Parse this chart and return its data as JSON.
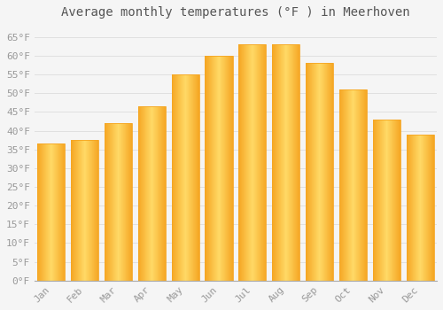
{
  "title": "Average monthly temperatures (°F ) in Meerhoven",
  "months": [
    "Jan",
    "Feb",
    "Mar",
    "Apr",
    "May",
    "Jun",
    "Jul",
    "Aug",
    "Sep",
    "Oct",
    "Nov",
    "Dec"
  ],
  "values": [
    36.5,
    37.5,
    42.0,
    46.5,
    55.0,
    60.0,
    63.0,
    63.0,
    58.0,
    51.0,
    43.0,
    39.0
  ],
  "bar_color_center": "#FFD966",
  "bar_color_edge": "#F5A623",
  "background_color": "#F5F5F5",
  "grid_color": "#E0E0E0",
  "text_color": "#999999",
  "title_color": "#555555",
  "ylim": [
    0,
    68
  ],
  "yticks": [
    0,
    5,
    10,
    15,
    20,
    25,
    30,
    35,
    40,
    45,
    50,
    55,
    60,
    65
  ],
  "title_fontsize": 10,
  "tick_fontsize": 8,
  "bar_width": 0.82
}
